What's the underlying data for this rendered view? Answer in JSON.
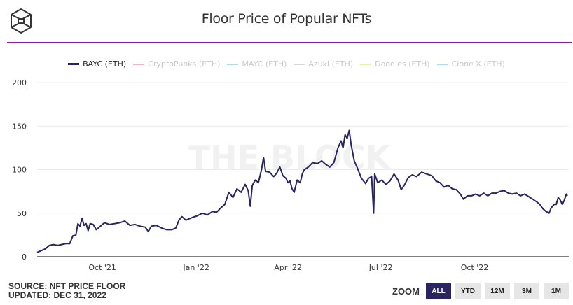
{
  "header": {
    "title": "Floor Price of Popular NFTs",
    "logo": "the-block-cube-logo"
  },
  "legend": [
    {
      "label": "BAYC (ETH)",
      "color": "#2a2463",
      "active": true
    },
    {
      "label": "CryptoPunks (ETH)",
      "color": "#f4b6bd",
      "active": false
    },
    {
      "label": "MAYC (ETH)",
      "color": "#a8e0d6",
      "active": false
    },
    {
      "label": "Azuki (ETH)",
      "color": "#d6d6dc",
      "active": false
    },
    {
      "label": "Doodles (ETH)",
      "color": "#eeee9e",
      "active": false
    },
    {
      "label": "Clone X (ETH)",
      "color": "#a9daf0",
      "active": false
    }
  ],
  "watermark": "THE BLOCK",
  "footer": {
    "source_prefix": "SOURCE: ",
    "source_link": "NFT PRICE FLOOR",
    "updated": "UPDATED: DEC 31, 2022"
  },
  "zoom": {
    "label": "ZOOM",
    "buttons": [
      {
        "label": "ALL",
        "active": true
      },
      {
        "label": "YTD",
        "active": false
      },
      {
        "label": "12M",
        "active": false
      },
      {
        "label": "3M",
        "active": false
      },
      {
        "label": "1M",
        "active": false
      }
    ]
  },
  "chart_data": {
    "type": "line",
    "title": "Floor Price of Popular NFTs",
    "xlabel": "",
    "ylabel": "",
    "ylim": [
      0,
      200
    ],
    "yticks": [
      0,
      50,
      100,
      150,
      200
    ],
    "xlim": [
      "2021-07-29",
      "2022-12-31"
    ],
    "xticks": [
      {
        "date": "2021-10-01",
        "label": "Oct '21"
      },
      {
        "date": "2022-01-01",
        "label": "Jan '22"
      },
      {
        "date": "2022-04-01",
        "label": "Apr '22"
      },
      {
        "date": "2022-07-01",
        "label": "Jul '22"
      },
      {
        "date": "2022-10-01",
        "label": "Oct '22"
      }
    ],
    "grid": true,
    "legend_position": "top-center",
    "series": [
      {
        "name": "BAYC (ETH)",
        "color": "#2a2463",
        "points": [
          [
            "2021-07-29",
            5
          ],
          [
            "2021-08-02",
            7
          ],
          [
            "2021-08-06",
            9
          ],
          [
            "2021-08-10",
            13
          ],
          [
            "2021-08-14",
            14
          ],
          [
            "2021-08-18",
            13
          ],
          [
            "2021-08-22",
            14
          ],
          [
            "2021-08-26",
            15
          ],
          [
            "2021-08-30",
            15
          ],
          [
            "2021-09-02",
            24
          ],
          [
            "2021-09-05",
            25
          ],
          [
            "2021-09-07",
            38
          ],
          [
            "2021-09-09",
            35
          ],
          [
            "2021-09-11",
            44
          ],
          [
            "2021-09-13",
            36
          ],
          [
            "2021-09-15",
            38
          ],
          [
            "2021-09-17",
            30
          ],
          [
            "2021-09-19",
            38
          ],
          [
            "2021-09-22",
            37
          ],
          [
            "2021-09-25",
            31
          ],
          [
            "2021-09-29",
            35
          ],
          [
            "2021-10-03",
            39
          ],
          [
            "2021-10-08",
            37
          ],
          [
            "2021-10-13",
            38
          ],
          [
            "2021-10-18",
            39
          ],
          [
            "2021-10-23",
            41
          ],
          [
            "2021-10-28",
            36
          ],
          [
            "2021-11-02",
            37
          ],
          [
            "2021-11-07",
            35
          ],
          [
            "2021-11-12",
            34
          ],
          [
            "2021-11-15",
            29
          ],
          [
            "2021-11-18",
            35
          ],
          [
            "2021-11-23",
            36
          ],
          [
            "2021-11-28",
            33
          ],
          [
            "2021-12-03",
            31
          ],
          [
            "2021-12-08",
            31
          ],
          [
            "2021-12-12",
            33
          ],
          [
            "2021-12-15",
            42
          ],
          [
            "2021-12-18",
            46
          ],
          [
            "2021-12-22",
            42
          ],
          [
            "2021-12-28",
            45
          ],
          [
            "2022-01-02",
            47
          ],
          [
            "2022-01-07",
            50
          ],
          [
            "2022-01-12",
            48
          ],
          [
            "2022-01-17",
            52
          ],
          [
            "2022-01-21",
            51
          ],
          [
            "2022-01-25",
            56
          ],
          [
            "2022-01-29",
            60
          ],
          [
            "2022-02-02",
            74
          ],
          [
            "2022-02-06",
            68
          ],
          [
            "2022-02-10",
            78
          ],
          [
            "2022-02-14",
            74
          ],
          [
            "2022-02-18",
            83
          ],
          [
            "2022-02-21",
            76
          ],
          [
            "2022-02-23",
            58
          ],
          [
            "2022-02-25",
            82
          ],
          [
            "2022-02-28",
            88
          ],
          [
            "2022-03-03",
            85
          ],
          [
            "2022-03-06",
            100
          ],
          [
            "2022-03-08",
            114
          ],
          [
            "2022-03-10",
            98
          ],
          [
            "2022-03-14",
            97
          ],
          [
            "2022-03-18",
            92
          ],
          [
            "2022-03-21",
            96
          ],
          [
            "2022-03-24",
            103
          ],
          [
            "2022-03-27",
            93
          ],
          [
            "2022-03-30",
            90
          ],
          [
            "2022-04-01",
            85
          ],
          [
            "2022-04-03",
            87
          ],
          [
            "2022-04-05",
            78
          ],
          [
            "2022-04-07",
            74
          ],
          [
            "2022-04-10",
            88
          ],
          [
            "2022-04-13",
            85
          ],
          [
            "2022-04-15",
            95
          ],
          [
            "2022-04-17",
            100
          ],
          [
            "2022-04-21",
            103
          ],
          [
            "2022-04-25",
            108
          ],
          [
            "2022-04-30",
            107
          ],
          [
            "2022-05-04",
            110
          ],
          [
            "2022-05-08",
            106
          ],
          [
            "2022-05-12",
            103
          ],
          [
            "2022-05-16",
            108
          ],
          [
            "2022-05-20",
            125
          ],
          [
            "2022-05-23",
            133
          ],
          [
            "2022-05-25",
            125
          ],
          [
            "2022-05-27",
            140
          ],
          [
            "2022-05-29",
            136
          ],
          [
            "2022-05-31",
            145
          ],
          [
            "2022-06-02",
            128
          ],
          [
            "2022-06-05",
            110
          ],
          [
            "2022-06-08",
            102
          ],
          [
            "2022-06-12",
            90
          ],
          [
            "2022-06-16",
            84
          ],
          [
            "2022-06-19",
            90
          ],
          [
            "2022-06-22",
            92
          ],
          [
            "2022-06-24",
            50
          ],
          [
            "2022-06-25",
            95
          ],
          [
            "2022-06-28",
            85
          ],
          [
            "2022-07-02",
            88
          ],
          [
            "2022-07-06",
            83
          ],
          [
            "2022-07-10",
            87
          ],
          [
            "2022-07-14",
            95
          ],
          [
            "2022-07-18",
            88
          ],
          [
            "2022-07-21",
            77
          ],
          [
            "2022-07-24",
            82
          ],
          [
            "2022-07-28",
            91
          ],
          [
            "2022-08-01",
            94
          ],
          [
            "2022-08-05",
            92
          ],
          [
            "2022-08-10",
            97
          ],
          [
            "2022-08-15",
            95
          ],
          [
            "2022-08-20",
            93
          ],
          [
            "2022-08-24",
            87
          ],
          [
            "2022-08-28",
            85
          ],
          [
            "2022-09-01",
            80
          ],
          [
            "2022-09-05",
            82
          ],
          [
            "2022-09-09",
            78
          ],
          [
            "2022-09-13",
            77
          ],
          [
            "2022-09-17",
            72
          ],
          [
            "2022-09-20",
            66
          ],
          [
            "2022-09-24",
            70
          ],
          [
            "2022-09-28",
            70
          ],
          [
            "2022-10-02",
            72
          ],
          [
            "2022-10-06",
            70
          ],
          [
            "2022-10-10",
            73
          ],
          [
            "2022-10-14",
            70
          ],
          [
            "2022-10-18",
            73
          ],
          [
            "2022-10-22",
            73
          ],
          [
            "2022-10-26",
            75
          ],
          [
            "2022-10-30",
            76
          ],
          [
            "2022-11-03",
            73
          ],
          [
            "2022-11-07",
            72
          ],
          [
            "2022-11-11",
            73
          ],
          [
            "2022-11-15",
            70
          ],
          [
            "2022-11-19",
            72
          ],
          [
            "2022-11-23",
            69
          ],
          [
            "2022-11-27",
            66
          ],
          [
            "2022-12-01",
            63
          ],
          [
            "2022-12-04",
            60
          ],
          [
            "2022-12-07",
            55
          ],
          [
            "2022-12-10",
            52
          ],
          [
            "2022-12-13",
            50
          ],
          [
            "2022-12-15",
            56
          ],
          [
            "2022-12-18",
            60
          ],
          [
            "2022-12-20",
            60
          ],
          [
            "2022-12-22",
            68
          ],
          [
            "2022-12-24",
            65
          ],
          [
            "2022-12-26",
            60
          ],
          [
            "2022-12-28",
            65
          ],
          [
            "2022-12-30",
            72
          ],
          [
            "2022-12-31",
            70
          ]
        ]
      }
    ]
  }
}
